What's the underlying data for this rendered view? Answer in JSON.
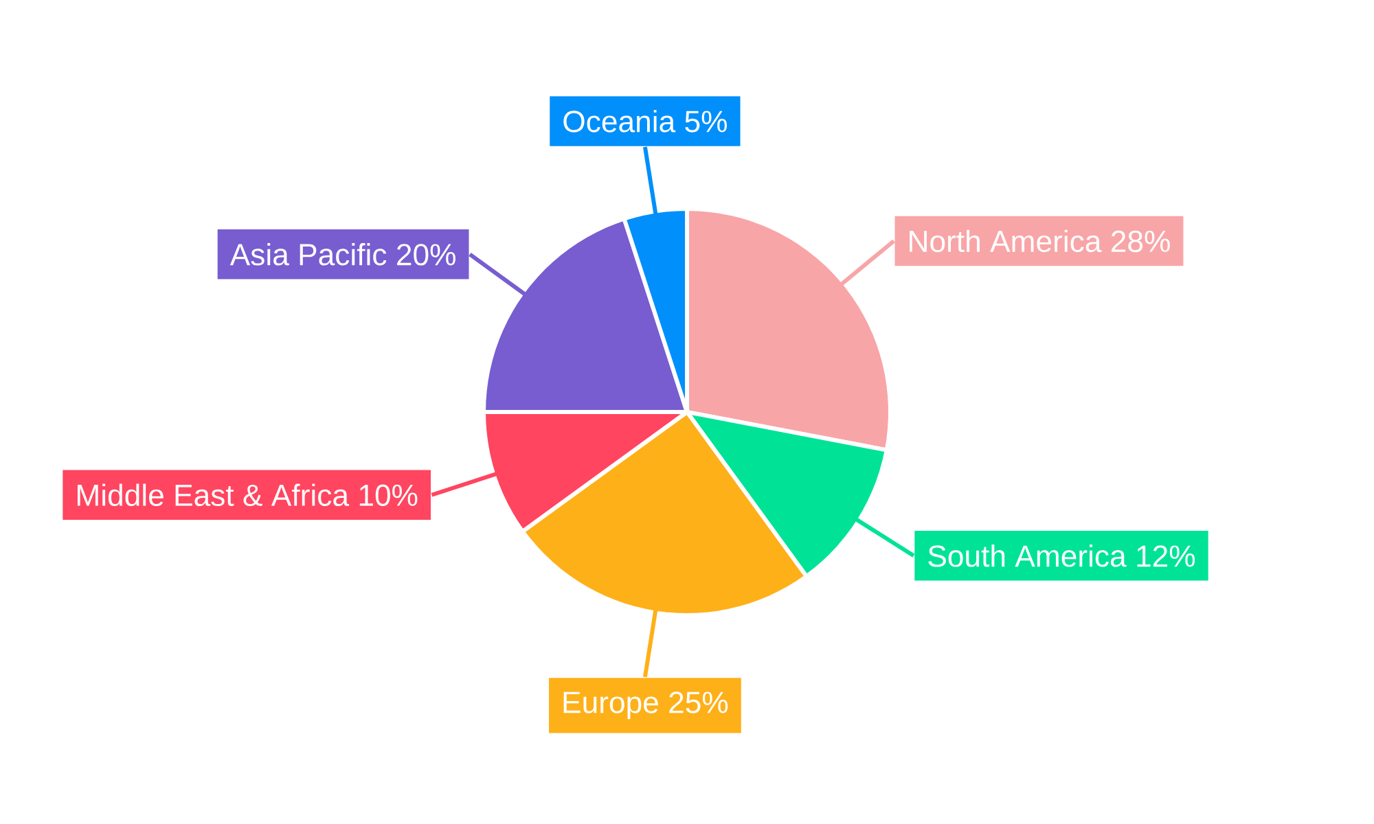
{
  "chart_data": {
    "type": "pie",
    "categories": [
      "North America",
      "South America",
      "Europe",
      "Middle East & Africa",
      "Asia Pacific",
      "Oceania"
    ],
    "values": [
      28,
      12,
      25,
      10,
      20,
      5
    ],
    "value_labels": [
      "28%",
      "12%",
      "25%",
      "10%",
      "20%",
      "5%"
    ],
    "colors": [
      "#f8a5a7",
      "#00e396",
      "#feb019",
      "#ff4560",
      "#775dd0",
      "#008ffb"
    ]
  }
}
